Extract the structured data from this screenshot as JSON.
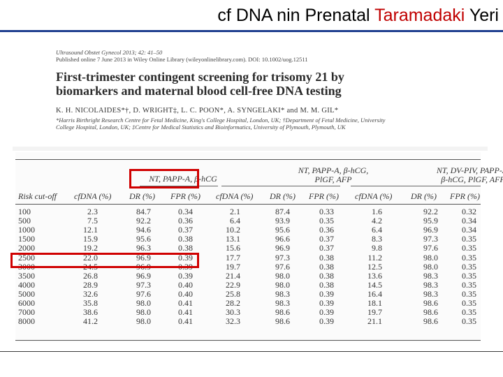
{
  "slide": {
    "title_part1": "cf DNA nin Prenatal ",
    "title_highlight": "Taramadaki",
    "title_part2": " Yeri"
  },
  "paper": {
    "citation": "Ultrasound Obstet Gynecol 2013; 42: 41–50",
    "published": "Published online 7 June 2013 in Wiley Online Library (wileyonlinelibrary.com). DOI: 10.1002/uog.12511",
    "title_line1": "First-trimester contingent screening for trisomy 21 by",
    "title_line2": "biomarkers and maternal blood cell-free DNA testing",
    "authors": "K. H. NICOLAIDES*†, D. WRIGHT‡, L. C. POON*, A. SYNGELAKI* and M. M. GIL*",
    "affil_line1": "*Harris Birthright Research Centre for Fetal Medicine, King's College Hospital, London, UK; †Department of Fetal Medicine, University",
    "affil_line2": "College Hospital, London, UK; ‡Centre for Medical Statistics and Bioinformatics, University of Plymouth, Plymouth, UK"
  },
  "table": {
    "groups": [
      {
        "label": "NT, PAPP-A, β-hCG"
      },
      {
        "label_line1": "NT, PAPP-A, β-hCG,",
        "label_line2": "PlGF, AFP"
      },
      {
        "label_line1": "NT, DV-PIV, PAPP-A,",
        "label_line2": "β-hCG, PlGF, AFP"
      }
    ],
    "headers": [
      "Risk cut-off",
      "cfDNA (%)",
      "DR (%)",
      "FPR (%)",
      "cfDNA (%)",
      "DR (%)",
      "FPR (%)",
      "cfDNA (%)",
      "DR (%)",
      "FPR (%)"
    ],
    "rows": [
      [
        "100",
        "2.3",
        "84.7",
        "0.34",
        "2.1",
        "87.4",
        "0.33",
        "1.6",
        "92.2",
        "0.32"
      ],
      [
        "500",
        "7.5",
        "92.2",
        "0.36",
        "6.4",
        "93.9",
        "0.35",
        "4.2",
        "95.9",
        "0.34"
      ],
      [
        "1000",
        "12.1",
        "94.6",
        "0.37",
        "10.2",
        "95.6",
        "0.36",
        "6.4",
        "96.9",
        "0.34"
      ],
      [
        "1500",
        "15.9",
        "95.6",
        "0.38",
        "13.1",
        "96.6",
        "0.37",
        "8.3",
        "97.3",
        "0.35"
      ],
      [
        "2000",
        "19.2",
        "96.3",
        "0.38",
        "15.6",
        "96.9",
        "0.37",
        "9.8",
        "97.6",
        "0.35"
      ],
      [
        "2500",
        "22.0",
        "96.9",
        "0.39",
        "17.7",
        "97.3",
        "0.38",
        "11.2",
        "98.0",
        "0.35"
      ],
      [
        "3000",
        "24.5",
        "96.9",
        "0.39",
        "19.7",
        "97.6",
        "0.38",
        "12.5",
        "98.0",
        "0.35"
      ],
      [
        "3500",
        "26.8",
        "96.9",
        "0.39",
        "21.4",
        "98.0",
        "0.38",
        "13.6",
        "98.3",
        "0.35"
      ],
      [
        "4000",
        "28.9",
        "97.3",
        "0.40",
        "22.9",
        "98.0",
        "0.38",
        "14.5",
        "98.3",
        "0.35"
      ],
      [
        "5000",
        "32.6",
        "97.6",
        "0.40",
        "25.8",
        "98.3",
        "0.39",
        "16.4",
        "98.3",
        "0.35"
      ],
      [
        "6000",
        "35.8",
        "98.0",
        "0.41",
        "28.2",
        "98.3",
        "0.39",
        "18.1",
        "98.6",
        "0.35"
      ],
      [
        "7000",
        "38.6",
        "98.0",
        "0.41",
        "30.3",
        "98.6",
        "0.39",
        "19.7",
        "98.6",
        "0.35"
      ],
      [
        "8000",
        "41.2",
        "98.0",
        "0.41",
        "32.3",
        "98.6",
        "0.39",
        "21.1",
        "98.6",
        "0.35"
      ]
    ]
  },
  "colors": {
    "highlight_box": "#d00000",
    "title_highlight": "#c00000",
    "title_rule": "#1f3f8f"
  }
}
